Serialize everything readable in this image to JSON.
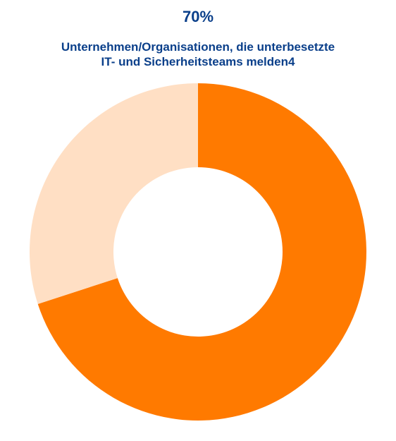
{
  "stat": {
    "value": "70%"
  },
  "caption": {
    "line1": "Unternehmen/Organisationen, die unterbesetzte",
    "line2": "IT- und Sicherheitsteams melden4"
  },
  "chart_data": {
    "type": "pie",
    "variant": "donut",
    "title": "70%",
    "subtitle": "Unternehmen/Organisationen, die unterbesetzte IT- und Sicherheitsteams melden4",
    "values": [
      70,
      30
    ],
    "unit": "%",
    "colors": [
      "#ff7a00",
      "#ffdfc4"
    ],
    "start": "12 o'clock",
    "direction": "clockwise",
    "legend": "none"
  }
}
